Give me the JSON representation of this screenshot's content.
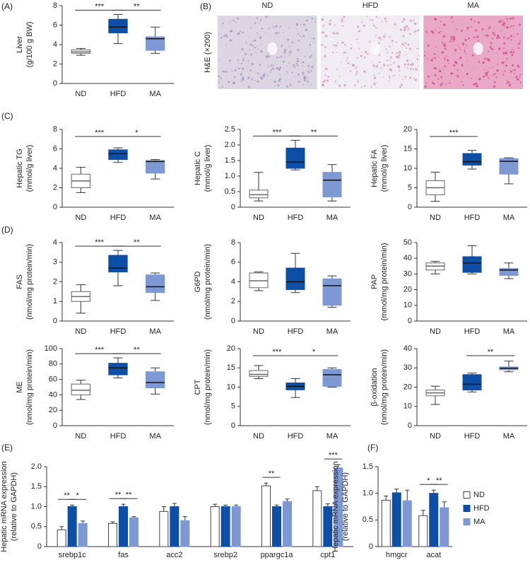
{
  "chart_data": [
    {
      "type": "box",
      "panel": "(A)",
      "ylabel": [
        "Liver",
        "(g/100 g BW)"
      ],
      "categories": [
        "ND",
        "HFD",
        "MA"
      ],
      "colors": [
        "#ffffff",
        "#0d4ea6",
        "#7d98d3"
      ],
      "boxes": [
        {
          "min": 2.9,
          "q1": 3.1,
          "median": 3.25,
          "q3": 3.45,
          "max": 3.6
        },
        {
          "min": 4.1,
          "q1": 5.2,
          "median": 5.8,
          "q3": 6.6,
          "max": 7.1
        },
        {
          "min": 3.1,
          "q1": 3.4,
          "median": 4.6,
          "q3": 4.8,
          "max": 5.8
        }
      ],
      "ylim": [
        0,
        8
      ],
      "yticks": [
        0,
        2,
        4,
        6,
        8
      ],
      "annotations": [
        {
          "text": "***",
          "between": [
            "ND",
            "HFD"
          ]
        },
        {
          "text": "**",
          "between": [
            "HFD",
            "MA"
          ]
        }
      ]
    },
    {
      "type": "image",
      "panel": "(B)",
      "ylabel": "H&E (×200)",
      "categories": [
        "ND",
        "HFD",
        "MA"
      ]
    },
    {
      "type": "box",
      "panel": "(C)",
      "ylabel": [
        "Hepatic TG",
        "(mmol/g liver)"
      ],
      "categories": [
        "ND",
        "HFD",
        "MA"
      ],
      "colors": [
        "#ffffff",
        "#0d4ea6",
        "#7d98d3"
      ],
      "boxes": [
        {
          "min": 1.5,
          "q1": 2.0,
          "median": 2.7,
          "q3": 3.4,
          "max": 4.1
        },
        {
          "min": 4.6,
          "q1": 4.9,
          "median": 5.5,
          "q3": 5.9,
          "max": 6.1
        },
        {
          "min": 2.9,
          "q1": 3.5,
          "median": 4.7,
          "q3": 4.8,
          "max": 4.9
        }
      ],
      "ylim": [
        0,
        8
      ],
      "yticks": [
        0,
        2,
        4,
        6,
        8
      ],
      "annotations": [
        {
          "text": "***",
          "between": [
            "ND",
            "HFD"
          ]
        },
        {
          "text": "*",
          "between": [
            "HFD",
            "MA"
          ]
        }
      ]
    },
    {
      "type": "box",
      "ylabel": [
        "Hepatic C",
        "(mmol/g liver)"
      ],
      "categories": [
        "ND",
        "HFD",
        "MA"
      ],
      "colors": [
        "#ffffff",
        "#0d4ea6",
        "#7d98d3"
      ],
      "boxes": [
        {
          "min": 0.2,
          "q1": 0.3,
          "median": 0.4,
          "q3": 0.55,
          "max": 1.12
        },
        {
          "min": 1.2,
          "q1": 1.25,
          "median": 1.45,
          "q3": 1.9,
          "max": 2.15
        },
        {
          "min": 0.2,
          "q1": 0.33,
          "median": 0.87,
          "q3": 1.12,
          "max": 1.37
        }
      ],
      "ylim": [
        0,
        2.5
      ],
      "yticks": [
        0,
        0.5,
        {
          "value": 1,
          "label": "1.0"
        },
        1.5,
        {
          "value": 2,
          "label": "2.0"
        },
        2.5
      ],
      "annotations": [
        {
          "text": "***",
          "between": [
            "ND",
            "HFD"
          ]
        },
        {
          "text": "**",
          "between": [
            "HFD",
            "MA"
          ]
        }
      ]
    },
    {
      "type": "box",
      "ylabel": [
        "Hepatic FA",
        "(mmol/g liver)"
      ],
      "categories": [
        "ND",
        "HFD",
        "MA"
      ],
      "colors": [
        "#ffffff",
        "#0d4ea6",
        "#7d98d3"
      ],
      "boxes": [
        {
          "min": 1.5,
          "q1": 3.2,
          "median": 5,
          "q3": 6.8,
          "max": 9
        },
        {
          "min": 9.8,
          "q1": 10.8,
          "median": 11.7,
          "q3": 13.8,
          "max": 14.6
        },
        {
          "min": 6,
          "q1": 8.5,
          "median": 11.8,
          "q3": 12.5,
          "max": 12.7
        }
      ],
      "ylim": [
        0,
        20
      ],
      "yticks": [
        0,
        5,
        10,
        15,
        20
      ],
      "annotations": [
        {
          "text": "***",
          "between": [
            "ND",
            "HFD"
          ]
        }
      ]
    },
    {
      "type": "box",
      "panel": "(D)",
      "ylabel": [
        "FAS",
        "(nmol/mg protein/min)"
      ],
      "categories": [
        "ND",
        "HFD",
        "MA"
      ],
      "colors": [
        "#ffffff",
        "#0d4ea6",
        "#7d98d3"
      ],
      "boxes": [
        {
          "min": 0.4,
          "q1": 1.0,
          "median": 1.25,
          "q3": 1.5,
          "max": 1.85
        },
        {
          "min": 1.8,
          "q1": 2.5,
          "median": 2.7,
          "q3": 3.35,
          "max": 3.6
        },
        {
          "min": 1.05,
          "q1": 1.45,
          "median": 1.75,
          "q3": 2.35,
          "max": 2.45
        }
      ],
      "ylim": [
        0,
        4
      ],
      "yticks": [
        0,
        1,
        2,
        3,
        4
      ],
      "annotations": [
        {
          "text": "***",
          "between": [
            "ND",
            "HFD"
          ]
        },
        {
          "text": "**",
          "between": [
            "HFD",
            "MA"
          ]
        }
      ]
    },
    {
      "type": "box",
      "ylabel": [
        "G6PD",
        "(nmol/mg protein/min)"
      ],
      "categories": [
        "ND",
        "HFD",
        "MA"
      ],
      "colors": [
        "#ffffff",
        "#0d4ea6",
        "#7d98d3"
      ],
      "boxes": [
        {
          "min": 3.1,
          "q1": 3.4,
          "median": 4.1,
          "q3": 4.9,
          "max": 5.0
        },
        {
          "min": 2.9,
          "q1": 3.2,
          "median": 4.0,
          "q3": 5.4,
          "max": 6.9
        },
        {
          "min": 1.4,
          "q1": 1.6,
          "median": 3.6,
          "q3": 4.3,
          "max": 4.6
        }
      ],
      "ylim": [
        0,
        8
      ],
      "yticks": [
        0,
        2,
        4,
        6,
        8
      ],
      "annotations": []
    },
    {
      "type": "box",
      "ylabel": [
        "PAP",
        "(mmol/mg protein/min)"
      ],
      "categories": [
        "ND",
        "HFD",
        "MA"
      ],
      "colors": [
        "#ffffff",
        "#0d4ea6",
        "#7d98d3"
      ],
      "boxes": [
        {
          "min": 30,
          "q1": 32.5,
          "median": 35,
          "q3": 37,
          "max": 38
        },
        {
          "min": 30,
          "q1": 31,
          "median": 37,
          "q3": 41,
          "max": 48
        },
        {
          "min": 27,
          "q1": 29,
          "median": 32.5,
          "q3": 33.5,
          "max": 37
        }
      ],
      "ylim": [
        0,
        50
      ],
      "yticks": [
        0,
        10,
        20,
        30,
        40,
        50
      ],
      "annotations": []
    },
    {
      "type": "box",
      "ylabel": [
        "ME",
        "(nmol/mg protein/min)"
      ],
      "categories": [
        "ND",
        "HFD",
        "MA"
      ],
      "colors": [
        "#ffffff",
        "#0d4ea6",
        "#7d98d3"
      ],
      "boxes": [
        {
          "min": 34,
          "q1": 40,
          "median": 46,
          "q3": 54,
          "max": 59
        },
        {
          "min": 62,
          "q1": 66,
          "median": 75,
          "q3": 81,
          "max": 88
        },
        {
          "min": 41,
          "q1": 49,
          "median": 56,
          "q3": 70,
          "max": 75
        }
      ],
      "ylim": [
        0,
        100
      ],
      "yticks": [
        0,
        20,
        40,
        60,
        80,
        100
      ],
      "annotations": [
        {
          "text": "***",
          "between": [
            "ND",
            "HFD"
          ]
        },
        {
          "text": "**",
          "between": [
            "HFD",
            "MA"
          ]
        }
      ]
    },
    {
      "type": "box",
      "ylabel": [
        "CPT",
        "(nmol/mg protein/min)"
      ],
      "categories": [
        "ND",
        "HFD",
        "MA"
      ],
      "colors": [
        "#ffffff",
        "#0d4ea6",
        "#7d98d3"
      ],
      "boxes": [
        {
          "min": 12.2,
          "q1": 12.8,
          "median": 13.3,
          "q3": 14.3,
          "max": 15.6
        },
        {
          "min": 7.3,
          "q1": 9.3,
          "median": 10.2,
          "q3": 11.1,
          "max": 12.2
        },
        {
          "min": 10,
          "q1": 10.2,
          "median": 13.2,
          "q3": 14.6,
          "max": 15.0
        }
      ],
      "ylim": [
        0,
        20
      ],
      "yticks": [
        0,
        5,
        10,
        15,
        20
      ],
      "annotations": [
        {
          "text": "***",
          "between": [
            "ND",
            "HFD"
          ]
        },
        {
          "text": "*",
          "between": [
            "HFD",
            "MA"
          ]
        }
      ]
    },
    {
      "type": "box",
      "ylabel": [
        "β-oxidation",
        "(nmol/mg protein/min)"
      ],
      "categories": [
        "ND",
        "HFD",
        "MA"
      ],
      "colors": [
        "#ffffff",
        "#0d4ea6",
        "#7d98d3"
      ],
      "boxes": [
        {
          "min": 11,
          "q1": 15.5,
          "median": 17,
          "q3": 18.5,
          "max": 20.5
        },
        {
          "min": 17.5,
          "q1": 18.5,
          "median": 21.5,
          "q3": 26.5,
          "max": 27.3
        },
        {
          "min": 28,
          "q1": 29,
          "median": 29.8,
          "q3": 30.5,
          "max": 33.5
        }
      ],
      "ylim": [
        0,
        40
      ],
      "yticks": [
        0,
        10,
        20,
        30,
        40
      ],
      "annotations": [
        {
          "text": "**",
          "between": [
            "HFD",
            "MA"
          ]
        }
      ]
    },
    {
      "type": "bar",
      "panel": "(E)",
      "ylabel": [
        "Hepatic mRNA expression",
        "(relative to GAPDH)"
      ],
      "categories": [
        "srebp1c",
        "fas",
        "acc2",
        "srebp2",
        "ppargc1a",
        "cpt1"
      ],
      "series": [
        {
          "name": "ND",
          "color": "#ffffff",
          "values": [
            0.42,
            0.58,
            0.88,
            1.0,
            1.52,
            1.4
          ],
          "errors": [
            0.08,
            0.04,
            0.12,
            0.06,
            0.07,
            0.1
          ]
        },
        {
          "name": "HFD",
          "color": "#0d4ea6",
          "values": [
            1.0,
            1.0,
            1.0,
            1.0,
            1.0,
            1.0
          ],
          "errors": [
            0.04,
            0.06,
            0.08,
            0.04,
            0.04,
            0.07
          ]
        },
        {
          "name": "MA",
          "color": "#7d98d3",
          "values": [
            0.58,
            0.72,
            0.65,
            1.0,
            1.13,
            1.97
          ],
          "errors": [
            0.06,
            0.03,
            0.1,
            0.04,
            0.06,
            0.08
          ]
        }
      ],
      "ylim": [
        0,
        2.0
      ],
      "yticks": [
        0,
        0.5,
        {
          "value": 1,
          "label": "1.0"
        },
        1.5,
        {
          "value": 2,
          "label": "2.0"
        }
      ],
      "legend": false,
      "annotations": [
        {
          "category": "srebp1c",
          "text": "**",
          "between": [
            "ND",
            "HFD"
          ]
        },
        {
          "category": "srebp1c",
          "text": "*",
          "between": [
            "HFD",
            "MA"
          ]
        },
        {
          "category": "fas",
          "text": "**",
          "between": [
            "ND",
            "HFD"
          ]
        },
        {
          "category": "fas",
          "text": "**",
          "between": [
            "HFD",
            "MA"
          ]
        },
        {
          "category": "ppargc1a",
          "text": "**",
          "between": [
            "ND",
            "HFD"
          ]
        },
        {
          "category": "cpt1",
          "text": "***",
          "between": [
            "HFD",
            "MA"
          ]
        }
      ]
    },
    {
      "type": "bar",
      "panel": "(F)",
      "ylabel": [
        "Hepatic mRNA expression",
        "(relative to GAPDH)"
      ],
      "categories": [
        "hmgcr",
        "acat"
      ],
      "series": [
        {
          "name": "ND",
          "color": "#ffffff",
          "values": [
            0.87,
            0.58
          ],
          "errors": [
            0.08,
            0.1
          ]
        },
        {
          "name": "HFD",
          "color": "#0d4ea6",
          "values": [
            1.01,
            1.0
          ],
          "errors": [
            0.07,
            0.06
          ]
        },
        {
          "name": "MA",
          "color": "#7d98d3",
          "values": [
            0.86,
            0.73
          ],
          "errors": [
            0.2,
            0.11
          ]
        }
      ],
      "ylim": [
        0,
        1.5
      ],
      "yticks": [
        0,
        0.5,
        {
          "value": 1,
          "label": "1.0"
        },
        1.5
      ],
      "legend": true,
      "annotations": [
        {
          "category": "acat",
          "text": "*",
          "between": [
            "ND",
            "HFD"
          ]
        },
        {
          "category": "acat",
          "text": "**",
          "between": [
            "HFD",
            "MA"
          ]
        }
      ]
    }
  ]
}
